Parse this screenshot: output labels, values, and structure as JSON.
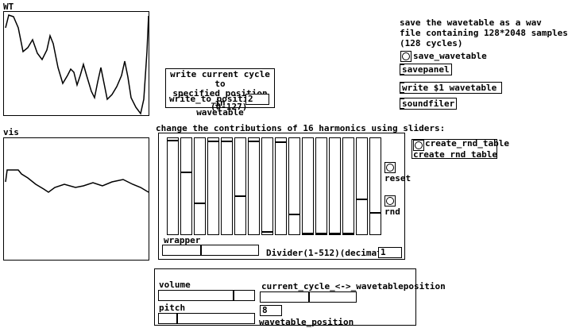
{
  "graphs": {
    "wt": "WT",
    "vis": "vis"
  },
  "save_comment": [
    "save the wavetable as a wav",
    "file containing 128*2048 samples",
    "(128 cycles)"
  ],
  "save": {
    "bang_label": "save_wavetable",
    "savepanel": "savepanel",
    "message": "write $1 wavetable",
    "soundfiler": "soundfiler"
  },
  "write_box": {
    "lines": [
      "write current cycle to",
      "specified position in",
      "wavetable"
    ],
    "name": "write_to_position",
    "number": "2",
    "range": "(0-127)"
  },
  "harmonics": {
    "comment": "change the contributions of 16 harmonics using sliders:",
    "reset": "reset",
    "rnd": "rnd",
    "wrapper": "wrapper",
    "divider": "Divider(1-512)(decimator)",
    "divider_number": "1"
  },
  "rnd_table": {
    "bang_label": "create_rnd_table",
    "name": "create rnd table"
  },
  "controls": {
    "volume": "volume",
    "cycle": "current_cycle_<->_wavetableposition",
    "pitch": "pitch",
    "number": "8",
    "position": "wavetable_position"
  }
}
